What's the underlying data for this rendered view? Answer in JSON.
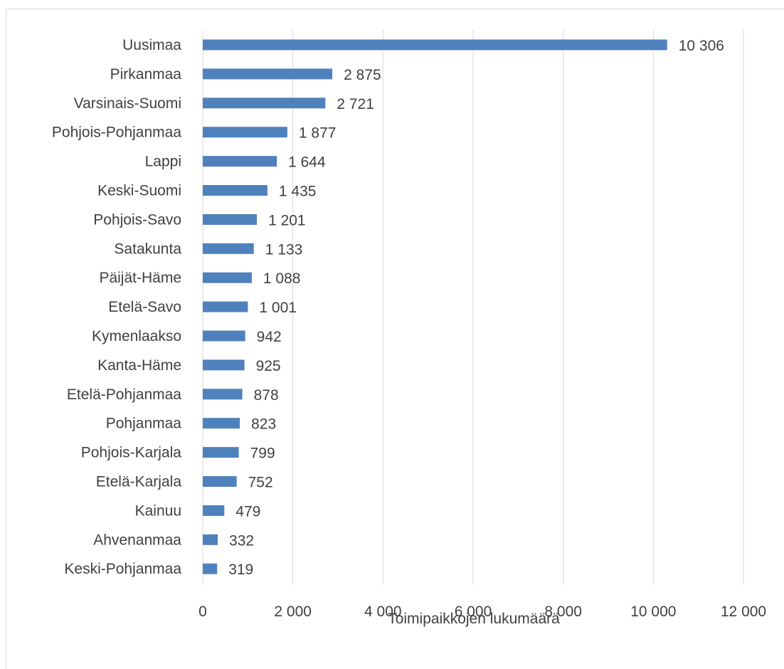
{
  "chart_data": {
    "type": "bar",
    "orientation": "horizontal",
    "title": "",
    "xlabel": "Toimipaikkojen lukumäärä",
    "ylabel": "",
    "xlim": [
      0,
      12000
    ],
    "x_ticks": [
      0,
      2000,
      4000,
      6000,
      8000,
      10000,
      12000
    ],
    "x_tick_labels": [
      "0",
      "2 000",
      "4 000",
      "6 000",
      "8 000",
      "10 000",
      "12 000"
    ],
    "grid": true,
    "legend": "none",
    "bar_color": "#4f81bd",
    "categories": [
      "Uusimaa",
      "Pirkanmaa",
      "Varsinais-Suomi",
      "Pohjois-Pohjanmaa",
      "Lappi",
      "Keski-Suomi",
      "Pohjois-Savo",
      "Satakunta",
      "Päijät-Häme",
      "Etelä-Savo",
      "Kymenlaakso",
      "Kanta-Häme",
      "Etelä-Pohjanmaa",
      "Pohjanmaa",
      "Pohjois-Karjala",
      "Etelä-Karjala",
      "Kainuu",
      "Ahvenanmaa",
      "Keski-Pohjanmaa"
    ],
    "values": [
      10306,
      2875,
      2721,
      1877,
      1644,
      1435,
      1201,
      1133,
      1088,
      1001,
      942,
      925,
      878,
      823,
      799,
      752,
      479,
      332,
      319
    ],
    "value_labels": [
      "10 306",
      "2 875",
      "2 721",
      "1 877",
      "1 644",
      "1 435",
      "1 201",
      "1 133",
      "1 088",
      "1 001",
      "942",
      "925",
      "878",
      "823",
      "799",
      "752",
      "479",
      "332",
      "319"
    ]
  }
}
